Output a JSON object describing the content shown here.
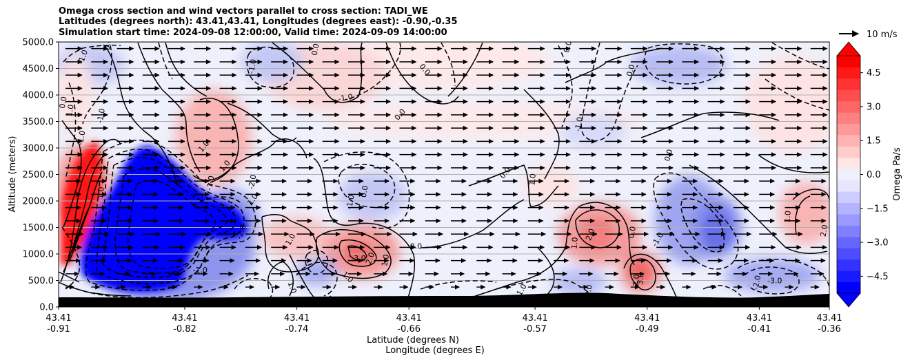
{
  "chart_data": {
    "type": "contour",
    "title_lines": [
      "Omega cross section and wind vectors parallel to cross section: TADI_WE",
      "Latitudes (degrees north): 43.41,43.41, Longitudes (degrees east): -0.90,-0.35",
      "Simulation start time: 2024-09-08 12:00:00, Valid time: 2024-09-09 14:00:00"
    ],
    "ylabel": "Altitude (meters)",
    "xlabel_1": "Latitude (degrees N)",
    "xlabel_2": "Longitude (degrees E)",
    "ylim": [
      0,
      5000
    ],
    "xlim": [
      -0.91,
      -0.36
    ],
    "y_ticks": [
      "0.0",
      "500.0",
      "1000.0",
      "1500.0",
      "2000.0",
      "2500.0",
      "3000.0",
      "3500.0",
      "4000.0",
      "4500.0",
      "5000.0"
    ],
    "y_tick_values": [
      0,
      500,
      1000,
      1500,
      2000,
      2500,
      3000,
      3500,
      4000,
      4500,
      5000
    ],
    "x_ticks": [
      {
        "lat": "43.41",
        "lon": "-0.91",
        "pos": -0.91
      },
      {
        "lat": "43.41",
        "lon": "-0.82",
        "pos": -0.82
      },
      {
        "lat": "43.41",
        "lon": "-0.74",
        "pos": -0.74
      },
      {
        "lat": "43.41",
        "lon": "-0.66",
        "pos": -0.66
      },
      {
        "lat": "43.41",
        "lon": "-0.57",
        "pos": -0.57
      },
      {
        "lat": "43.41",
        "lon": "-0.49",
        "pos": -0.49
      },
      {
        "lat": "43.41",
        "lon": "-0.41",
        "pos": -0.41
      },
      {
        "lat": "43.41",
        "lon": "-0.36",
        "pos": -0.36
      }
    ],
    "colorbar": {
      "label": "Omega Pa/s",
      "range": [
        -5.25,
        5.25
      ],
      "ticks": [
        "4.5",
        "3.0",
        "1.5",
        "0.0",
        "−1.5",
        "−3.0",
        "−4.5"
      ],
      "tick_values": [
        4.5,
        3.0,
        1.5,
        0.0,
        -1.5,
        -3.0,
        -4.5
      ],
      "step": 0.5,
      "extend": "both"
    },
    "quiver_key": "10 m/s",
    "quiver_key_speed": 10,
    "contour_labels": [
      {
        "text": "1.0",
        "x": -0.9,
        "y": 3700,
        "rot": -80
      },
      {
        "text": "0.0",
        "x": -0.905,
        "y": 3850,
        "rot": -80
      },
      {
        "text": "-1.0",
        "x": -0.891,
        "y": 4700,
        "rot": -70
      },
      {
        "text": "-1.0",
        "x": -0.892,
        "y": 3180,
        "rot": -80
      },
      {
        "text": "0.0",
        "x": -0.873,
        "y": 4950,
        "rot": -80
      },
      {
        "text": "-1.0",
        "x": -0.878,
        "y": 3600,
        "rot": -80
      },
      {
        "text": "1.0",
        "x": -0.878,
        "y": 2150,
        "rot": -85
      },
      {
        "text": "1.0",
        "x": -0.805,
        "y": 3000,
        "rot": -50
      },
      {
        "text": "-1.0",
        "x": -0.8,
        "y": 2330,
        "rot": -80
      },
      {
        "text": "1.0",
        "x": -0.79,
        "y": 2630,
        "rot": -50
      },
      {
        "text": "-2.0",
        "x": -0.77,
        "y": 2350,
        "rot": -80
      },
      {
        "text": "1.0",
        "x": -0.77,
        "y": 2000,
        "rot": -55
      },
      {
        "text": "-2.0",
        "x": -0.778,
        "y": 1400,
        "rot": -70
      },
      {
        "text": "-1.0",
        "x": -0.809,
        "y": 650,
        "rot": 0
      },
      {
        "text": "1.0",
        "x": -0.743,
        "y": 1250,
        "rot": -60
      },
      {
        "text": "1.0",
        "x": -0.745,
        "y": 350,
        "rot": 70
      },
      {
        "text": "-1.0",
        "x": -0.77,
        "y": 4530,
        "rot": -80
      },
      {
        "text": "0.0",
        "x": -0.725,
        "y": 4850,
        "rot": -80
      },
      {
        "text": "-1.0",
        "x": -0.705,
        "y": 3900,
        "rot": -10
      },
      {
        "text": "-1.0",
        "x": -0.7,
        "y": 1970,
        "rot": -80
      },
      {
        "text": "0.0",
        "x": -0.69,
        "y": 2170,
        "rot": -80
      },
      {
        "text": "1.0",
        "x": -0.705,
        "y": 530,
        "rot": 45
      },
      {
        "text": "3.0",
        "x": -0.695,
        "y": 870,
        "rot": 0
      },
      {
        "text": "2.0",
        "x": -0.686,
        "y": 900,
        "rot": -70
      },
      {
        "text": "1.0",
        "x": -0.675,
        "y": 870,
        "rot": -80
      },
      {
        "text": "0.0",
        "x": -0.655,
        "y": 1100,
        "rot": 0
      },
      {
        "text": "0.0",
        "x": -0.65,
        "y": 4450,
        "rot": 50
      },
      {
        "text": "0.0",
        "x": -0.665,
        "y": 3600,
        "rot": -50
      },
      {
        "text": "0.0",
        "x": -0.59,
        "y": 2500,
        "rot": -50
      },
      {
        "text": "1.0",
        "x": -0.57,
        "y": 2400,
        "rot": -85
      },
      {
        "text": "1.0",
        "x": -0.578,
        "y": 300,
        "rot": -60
      },
      {
        "text": "0.0",
        "x": -0.545,
        "y": 4900,
        "rot": -75
      },
      {
        "text": "-1.0",
        "x": -0.537,
        "y": 3440,
        "rot": -80
      },
      {
        "text": "0.0",
        "x": -0.5,
        "y": 4450,
        "rot": -75
      },
      {
        "text": "2.0",
        "x": -0.529,
        "y": 1350,
        "rot": -70
      },
      {
        "text": "1.0",
        "x": -0.54,
        "y": 1200,
        "rot": -85
      },
      {
        "text": "0.0",
        "x": -0.53,
        "y": 300,
        "rot": -80
      },
      {
        "text": "3.0",
        "x": -0.493,
        "y": 530,
        "rot": -85
      },
      {
        "text": "2.0",
        "x": -0.496,
        "y": 500,
        "rot": -85
      },
      {
        "text": "0.0",
        "x": -0.499,
        "y": 1400,
        "rot": -80
      },
      {
        "text": "-1.0",
        "x": -0.481,
        "y": 1250,
        "rot": -60
      },
      {
        "text": "0.0",
        "x": -0.473,
        "y": 2850,
        "rot": -75
      },
      {
        "text": "-2.0",
        "x": -0.41,
        "y": 450,
        "rot": -80
      },
      {
        "text": "-3.0",
        "x": -0.399,
        "y": 450,
        "rot": 0
      },
      {
        "text": "1.0",
        "x": -0.388,
        "y": 1700,
        "rot": -85
      },
      {
        "text": "2.0",
        "x": -0.362,
        "y": 1430,
        "rot": -80
      }
    ]
  }
}
